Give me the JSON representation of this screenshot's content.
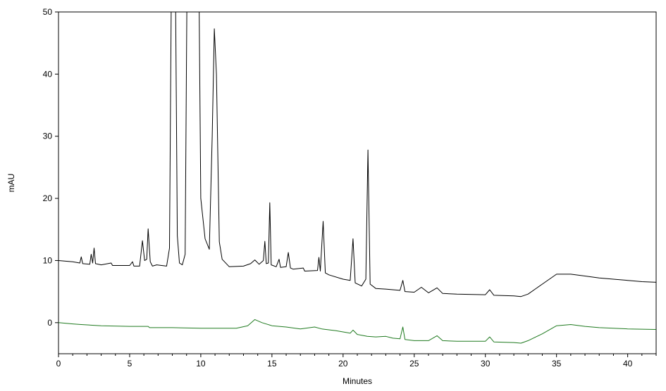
{
  "chart_data": {
    "type": "line",
    "xlabel": "Minutes",
    "ylabel": "mAU",
    "xlim": [
      0,
      42
    ],
    "ylim": [
      -5,
      50
    ],
    "x_ticks": [
      0,
      5,
      10,
      15,
      20,
      25,
      30,
      35,
      40
    ],
    "y_ticks": [
      0,
      10,
      20,
      30,
      40,
      50
    ],
    "grid": false,
    "legend": "none",
    "series": [
      {
        "color": "#000000",
        "points": [
          [
            0,
            10
          ],
          [
            1.0,
            9.8
          ],
          [
            1.5,
            9.6
          ],
          [
            1.6,
            10.6
          ],
          [
            1.7,
            9.5
          ],
          [
            2.2,
            9.4
          ],
          [
            2.3,
            11.0
          ],
          [
            2.4,
            9.6
          ],
          [
            2.5,
            12.0
          ],
          [
            2.6,
            9.5
          ],
          [
            3.0,
            9.3
          ],
          [
            3.7,
            9.6
          ],
          [
            3.8,
            9.2
          ],
          [
            5.0,
            9.2
          ],
          [
            5.2,
            9.8
          ],
          [
            5.3,
            9.1
          ],
          [
            5.7,
            9.1
          ],
          [
            5.9,
            13.2
          ],
          [
            6.05,
            10.0
          ],
          [
            6.2,
            10.2
          ],
          [
            6.3,
            15.1
          ],
          [
            6.45,
            9.8
          ],
          [
            6.6,
            9.1
          ],
          [
            6.9,
            9.3
          ],
          [
            7.6,
            9.1
          ],
          [
            7.8,
            12
          ],
          [
            7.95,
            60
          ],
          [
            8.2,
            60
          ],
          [
            8.35,
            14
          ],
          [
            8.5,
            9.6
          ],
          [
            8.7,
            9.3
          ],
          [
            8.9,
            11
          ],
          [
            9.05,
            60
          ],
          [
            9.85,
            60
          ],
          [
            10.0,
            20
          ],
          [
            10.3,
            13.5
          ],
          [
            10.6,
            11.8
          ],
          [
            10.8,
            30
          ],
          [
            10.95,
            47.3
          ],
          [
            11.1,
            40
          ],
          [
            11.3,
            13
          ],
          [
            11.5,
            10.2
          ],
          [
            12.0,
            9.0
          ],
          [
            13.0,
            9.1
          ],
          [
            13.5,
            9.5
          ],
          [
            13.8,
            10.1
          ],
          [
            14.1,
            9.4
          ],
          [
            14.4,
            10.0
          ],
          [
            14.5,
            13.1
          ],
          [
            14.6,
            9.5
          ],
          [
            14.75,
            9.6
          ],
          [
            14.85,
            19.3
          ],
          [
            14.95,
            9.3
          ],
          [
            15.3,
            9.0
          ],
          [
            15.5,
            10.2
          ],
          [
            15.6,
            8.9
          ],
          [
            16.0,
            9.0
          ],
          [
            16.15,
            11.3
          ],
          [
            16.3,
            8.8
          ],
          [
            16.5,
            8.6
          ],
          [
            17.2,
            8.8
          ],
          [
            17.3,
            8.3
          ],
          [
            18.2,
            8.4
          ],
          [
            18.3,
            10.5
          ],
          [
            18.4,
            8.3
          ],
          [
            18.6,
            16.3
          ],
          [
            18.75,
            8.0
          ],
          [
            19.0,
            7.7
          ],
          [
            20.0,
            7.0
          ],
          [
            20.5,
            6.8
          ],
          [
            20.7,
            13.5
          ],
          [
            20.85,
            6.4
          ],
          [
            21.3,
            5.9
          ],
          [
            21.6,
            7.0
          ],
          [
            21.75,
            27.8
          ],
          [
            21.9,
            6.2
          ],
          [
            22.3,
            5.5
          ],
          [
            23.0,
            5.4
          ],
          [
            24.0,
            5.2
          ],
          [
            24.2,
            6.8
          ],
          [
            24.35,
            5.0
          ],
          [
            25.0,
            4.9
          ],
          [
            25.5,
            5.7
          ],
          [
            26.0,
            4.8
          ],
          [
            26.6,
            5.6
          ],
          [
            27.0,
            4.7
          ],
          [
            28.0,
            4.6
          ],
          [
            30.0,
            4.5
          ],
          [
            30.3,
            5.3
          ],
          [
            30.6,
            4.4
          ],
          [
            32.0,
            4.3
          ],
          [
            32.5,
            4.2
          ],
          [
            33.0,
            4.6
          ],
          [
            34.0,
            6.2
          ],
          [
            35.0,
            7.8
          ],
          [
            36.0,
            7.8
          ],
          [
            37.0,
            7.5
          ],
          [
            38.0,
            7.2
          ],
          [
            39.0,
            7.0
          ],
          [
            40.0,
            6.8
          ],
          [
            41.0,
            6.6
          ],
          [
            42.0,
            6.5
          ]
        ]
      },
      {
        "color": "#1f7a1f",
        "points": [
          [
            0,
            0
          ],
          [
            1.0,
            -0.2
          ],
          [
            1.6,
            -0.3
          ],
          [
            3.0,
            -0.5
          ],
          [
            5.0,
            -0.6
          ],
          [
            6.3,
            -0.6
          ],
          [
            6.4,
            -0.8
          ],
          [
            8.0,
            -0.8
          ],
          [
            10.0,
            -0.9
          ],
          [
            12.5,
            -0.9
          ],
          [
            13.3,
            -0.5
          ],
          [
            13.8,
            0.5
          ],
          [
            14.3,
            0
          ],
          [
            15.0,
            -0.5
          ],
          [
            16.0,
            -0.7
          ],
          [
            17.0,
            -1.0
          ],
          [
            18.0,
            -0.7
          ],
          [
            18.5,
            -1.0
          ],
          [
            19.5,
            -1.3
          ],
          [
            20.5,
            -1.7
          ],
          [
            20.7,
            -1.2
          ],
          [
            21.0,
            -1.9
          ],
          [
            21.7,
            -2.2
          ],
          [
            22.3,
            -2.3
          ],
          [
            23.0,
            -2.2
          ],
          [
            23.5,
            -2.5
          ],
          [
            24.0,
            -2.6
          ],
          [
            24.2,
            -0.7
          ],
          [
            24.35,
            -2.7
          ],
          [
            25.0,
            -2.9
          ],
          [
            26.0,
            -2.9
          ],
          [
            26.6,
            -2.1
          ],
          [
            27.0,
            -2.9
          ],
          [
            28.0,
            -3.0
          ],
          [
            30.0,
            -3.0
          ],
          [
            30.3,
            -2.3
          ],
          [
            30.6,
            -3.1
          ],
          [
            32.0,
            -3.2
          ],
          [
            32.5,
            -3.3
          ],
          [
            33.0,
            -2.9
          ],
          [
            34.0,
            -1.8
          ],
          [
            35.0,
            -0.5
          ],
          [
            36.0,
            -0.3
          ],
          [
            37.0,
            -0.6
          ],
          [
            38.0,
            -0.8
          ],
          [
            40.0,
            -1.0
          ],
          [
            42.0,
            -1.1
          ]
        ]
      }
    ]
  }
}
